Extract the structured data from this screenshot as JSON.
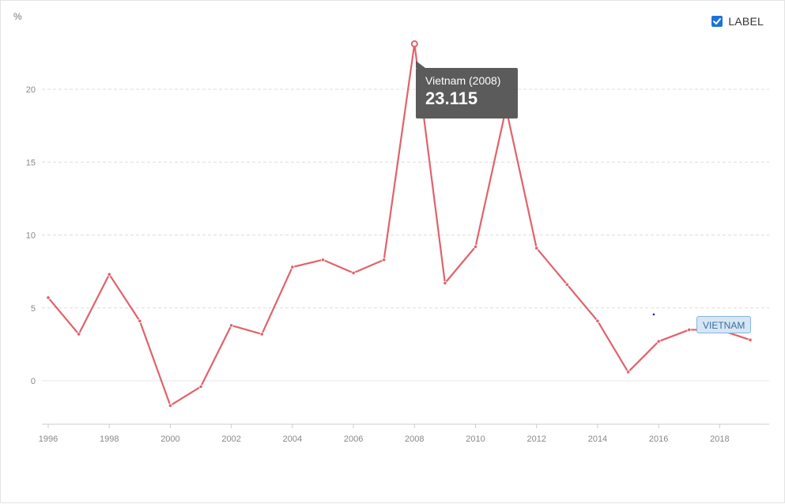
{
  "legend": {
    "label": "LABEL",
    "checked": true
  },
  "colors": {
    "series": "#e0626b",
    "grid": "#dddddd",
    "axis": "#cccccc",
    "tooltip_bg": "#5b5b5b",
    "checkbox": "#1d73d8",
    "highlight_dot": "#1f1fa0"
  },
  "icons": {
    "checkbox": "checkmark-icon"
  },
  "tooltip": {
    "title": "Vietnam (2008)",
    "value": "23.115"
  },
  "series_tag": {
    "label": "VIETNAM"
  },
  "chart_data": {
    "type": "line",
    "title": "",
    "xlabel": "",
    "ylabel": "%",
    "xlim": [
      1996,
      2019
    ],
    "ylim": [
      -3,
      23.5
    ],
    "x_ticks": [
      1996,
      1998,
      2000,
      2002,
      2004,
      2006,
      2008,
      2010,
      2012,
      2014,
      2016,
      2018
    ],
    "y_ticks": [
      0,
      5,
      10,
      15,
      20
    ],
    "grid": true,
    "series": [
      {
        "name": "Vietnam",
        "x": [
          1996,
          1997,
          1998,
          1999,
          2000,
          2001,
          2002,
          2003,
          2004,
          2005,
          2006,
          2007,
          2008,
          2009,
          2010,
          2011,
          2012,
          2013,
          2014,
          2015,
          2016,
          2017,
          2018,
          2019
        ],
        "values": [
          5.7,
          3.2,
          7.3,
          4.1,
          -1.7,
          -0.4,
          3.8,
          3.2,
          7.8,
          8.3,
          7.4,
          8.3,
          23.115,
          6.7,
          9.2,
          18.7,
          9.1,
          6.6,
          4.1,
          0.6,
          2.7,
          3.5,
          3.5,
          2.8
        ]
      }
    ]
  }
}
